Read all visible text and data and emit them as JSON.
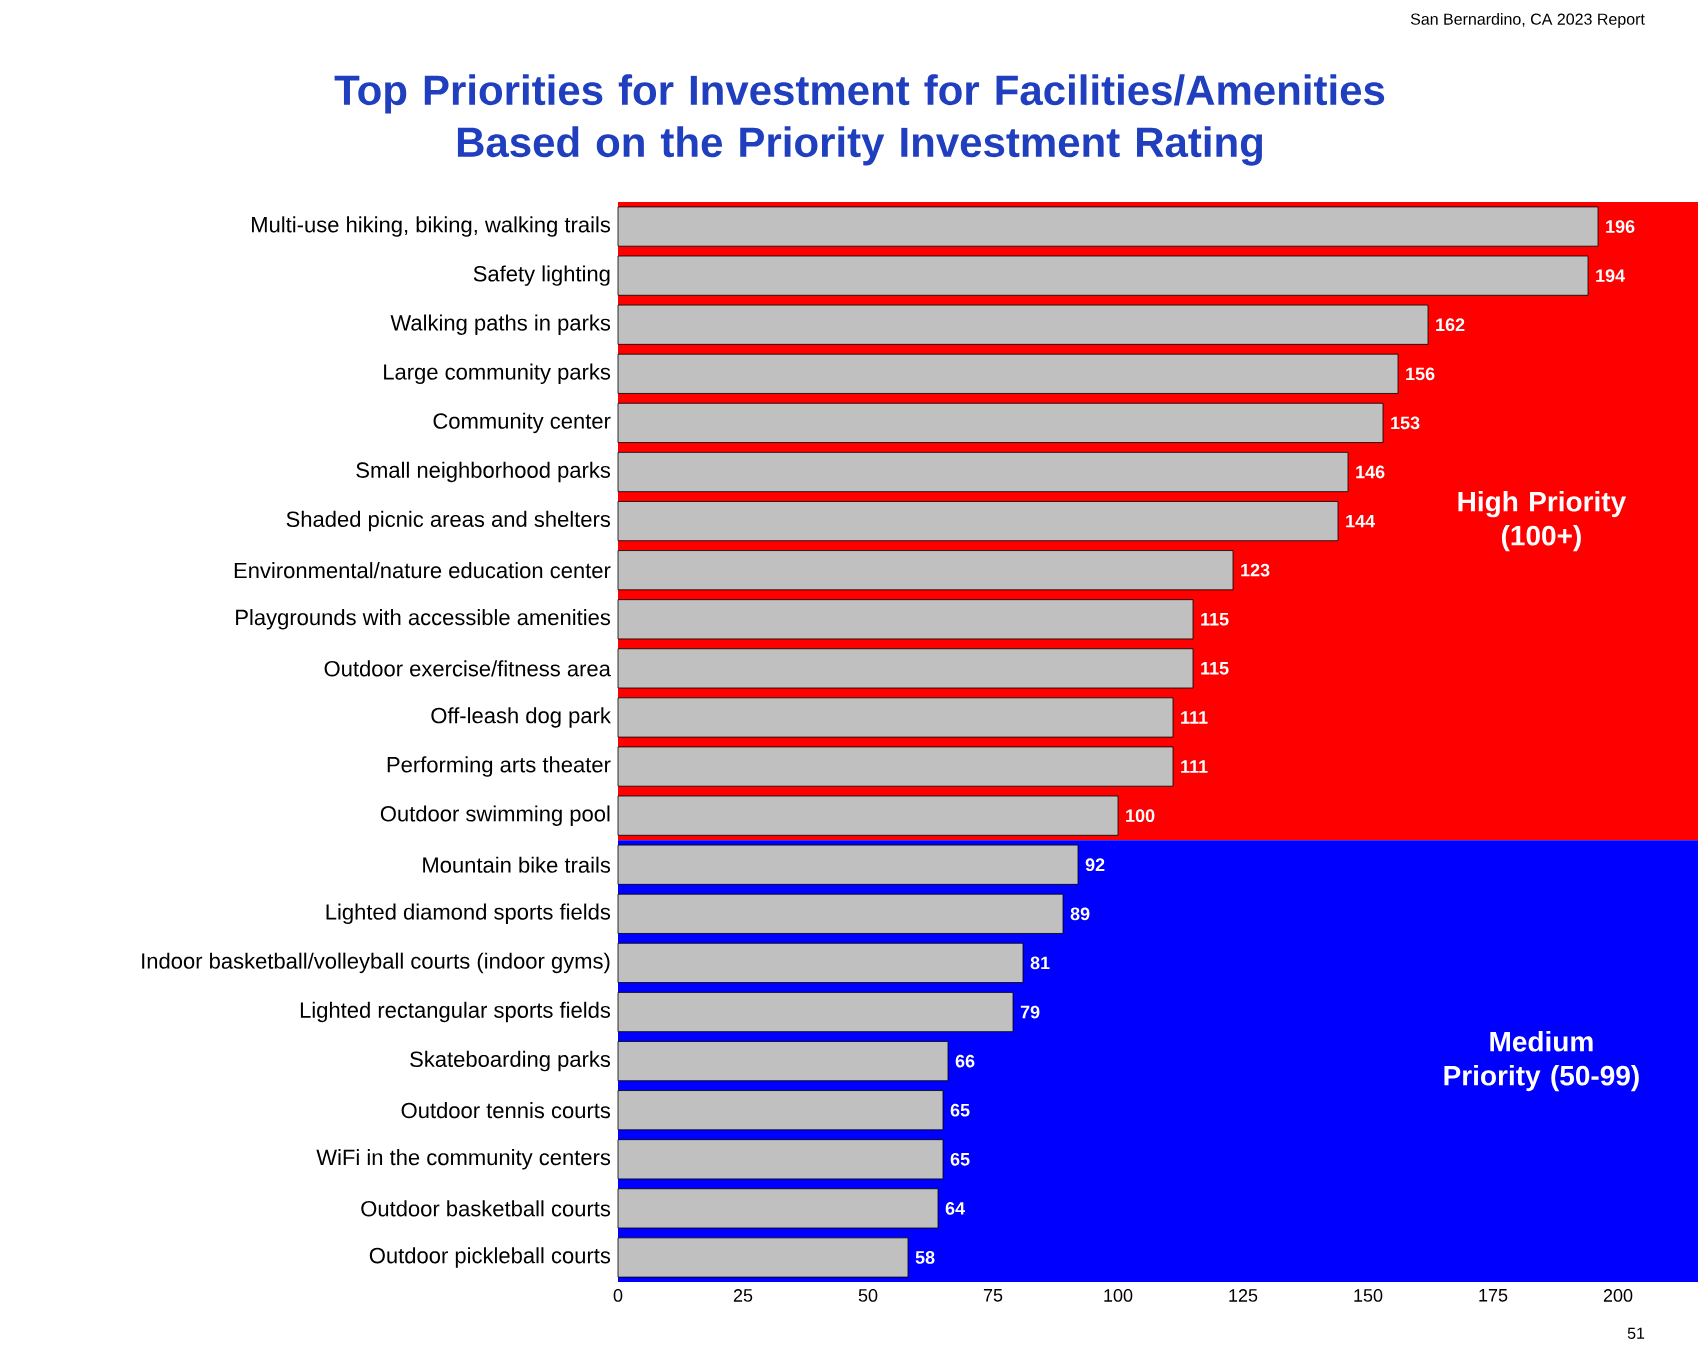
{
  "chart_data": {
    "type": "bar",
    "orientation": "horizontal",
    "title": "Top Priorities for Investment for Facilities/Amenities Based on the Priority Investment Rating",
    "categories": [
      "Multi-use hiking, biking, walking trails",
      "Safety lighting",
      "Walking paths in parks",
      "Large community parks",
      "Community center",
      "Small neighborhood parks",
      "Shaded picnic areas and shelters",
      "Environmental/nature education center",
      "Playgrounds with accessible amenities",
      "Outdoor exercise/fitness area",
      "Off-leash dog park",
      "Performing arts theater",
      "Outdoor swimming pool",
      "Mountain bike trails",
      "Lighted diamond sports fields",
      "Indoor basketball/volleyball courts (indoor gyms)",
      "Lighted rectangular sports fields",
      "Skateboarding parks",
      "Outdoor tennis courts",
      "WiFi in the community centers",
      "Outdoor basketball courts",
      "Outdoor pickleball courts"
    ],
    "values": [
      196,
      194,
      162,
      156,
      153,
      146,
      144,
      123,
      115,
      115,
      111,
      111,
      100,
      92,
      89,
      81,
      79,
      66,
      65,
      65,
      64,
      58
    ],
    "color": "#c0c0c0",
    "data_labels": true,
    "xlim": [
      0,
      216
    ],
    "xticks": [
      0,
      25,
      50,
      75,
      100,
      125,
      150,
      175,
      200
    ],
    "bands": [
      {
        "axis": "y",
        "from": "Multi-use hiking, biking, walking trails",
        "to": "Outdoor swimming pool",
        "label": "High Priority (100+)",
        "color": "#ff0000"
      },
      {
        "axis": "y",
        "from": "Mountain bike trails",
        "to": "Outdoor pickleball courts",
        "label": "Medium Priority (50-99)",
        "color": "#0000ff"
      }
    ],
    "annotations": [
      "San Bernardino, CA 2023 Report",
      "51"
    ]
  }
}
